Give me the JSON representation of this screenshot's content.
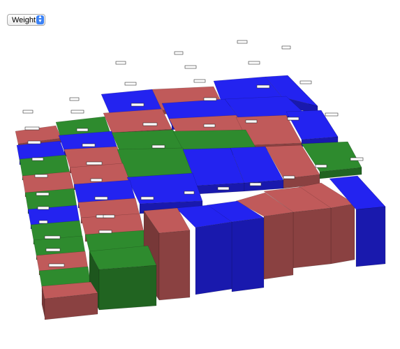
{
  "controls": {
    "metric_select": {
      "selected": "Weight",
      "arrow_icon": "up-down-chevron-icon"
    }
  },
  "palette": {
    "red": "#c05a5a",
    "green": "#2e8b2e",
    "blue": "#2323f0"
  }
}
